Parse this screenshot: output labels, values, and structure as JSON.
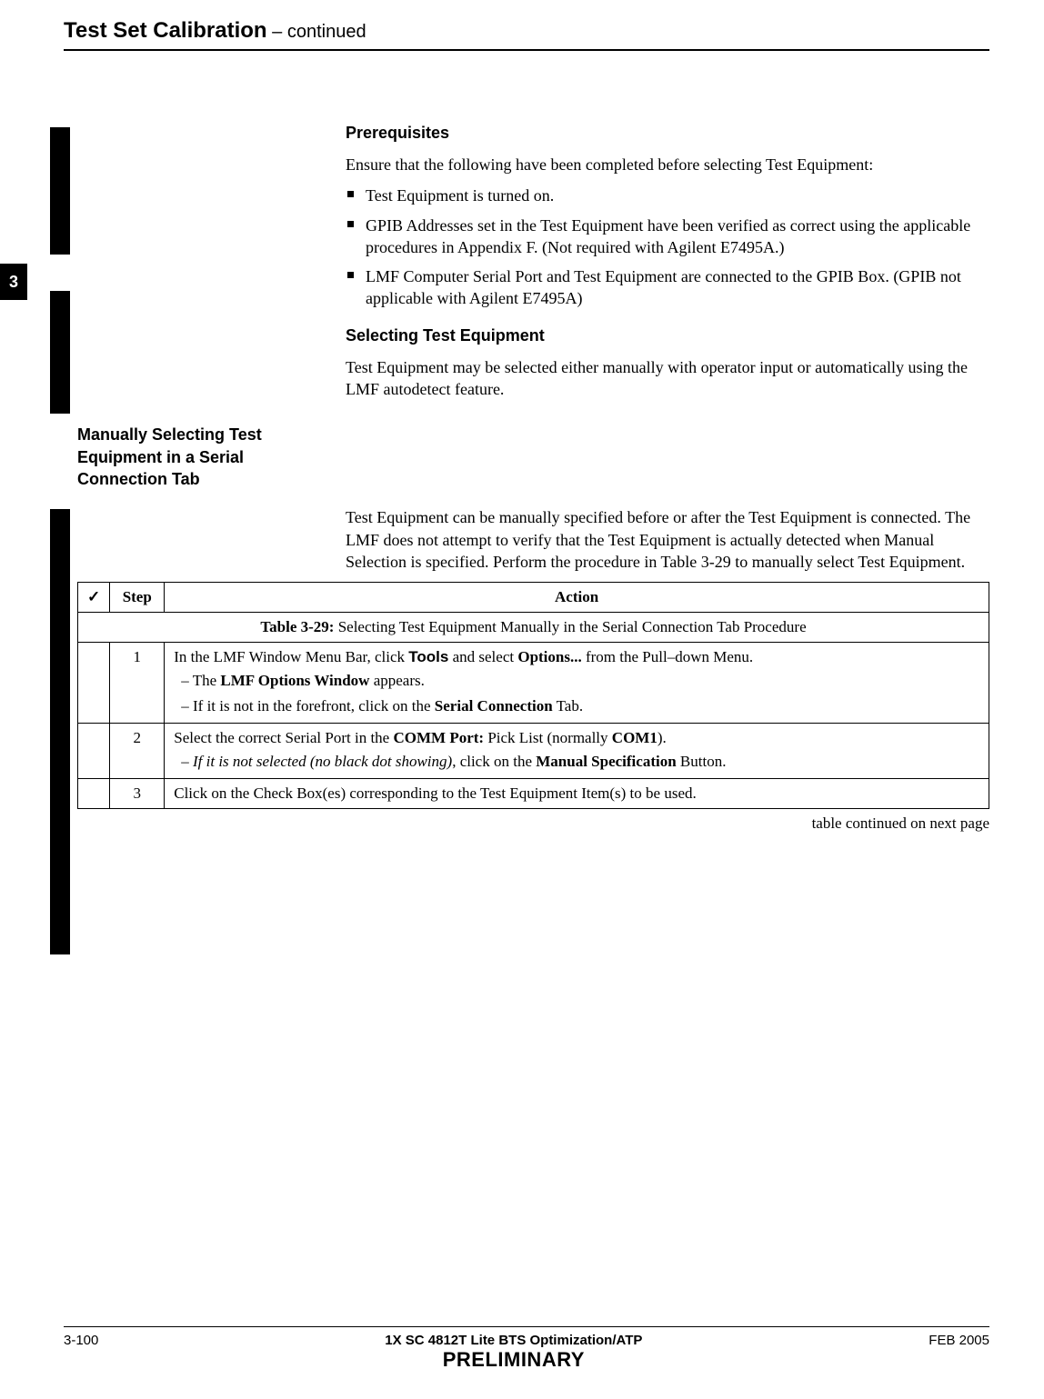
{
  "header": {
    "title": "Test Set Calibration",
    "continued": "  – continued"
  },
  "sideTab": "3",
  "sections": {
    "prereq": {
      "heading": "Prerequisites",
      "intro": "Ensure that the following have been completed before selecting Test Equipment:",
      "bullets": [
        "Test Equipment is turned on.",
        "GPIB Addresses set in the Test Equipment have been verified as correct using the applicable procedures in Appendix F. (Not required with Agilent E7495A.)",
        "LMF Computer Serial Port and Test Equipment are connected to the GPIB Box. (GPIB not applicable with Agilent E7495A)"
      ]
    },
    "selecting": {
      "heading": "Selecting Test Equipment",
      "para": "Test Equipment may be selected either manually with operator input or automatically using the LMF autodetect feature."
    },
    "manual": {
      "heading": "Manually Selecting Test Equipment in a Serial Connection Tab",
      "para": "Test Equipment can be manually specified before or after the Test Equipment is connected. The LMF does not attempt to verify that the Test Equipment is actually detected when Manual Selection is specified. Perform the procedure in Table 3-29 to manually select Test Equipment."
    }
  },
  "table": {
    "caption_prefix": "Table 3-29:",
    "caption_rest": " Selecting Test Equipment Manually in the Serial Connection Tab Procedure",
    "check_symbol": "✓",
    "col_step": "Step",
    "col_action": "Action",
    "rows": {
      "r1": {
        "step": "1",
        "a1a": "In the LMF Window Menu Bar, click ",
        "a1b": "Tools",
        "a1c": " and select ",
        "a1d": "Options...",
        "a1e": " from the Pull–down Menu.",
        "s1a": "–  The ",
        "s1b": "LMF Options Window",
        "s1c": " appears.",
        "s2a": "–  If it is not in the forefront, click on the ",
        "s2b": "Serial Connection",
        "s2c": " Tab."
      },
      "r2": {
        "step": "2",
        "a1a": "Select the correct Serial Port in the ",
        "a1b": "COMM Port:",
        "a1c": " Pick List (normally ",
        "a1d": "COM1",
        "a1e": ").",
        "s1a": "–  ",
        "s1b": "If it is not selected (no black dot showing)",
        "s1c": ", click on the ",
        "s1d": "Manual Specification",
        "s1e": " Button."
      },
      "r3": {
        "step": "3",
        "a1": "Click on the Check Box(es) corresponding to the Test Equipment Item(s) to be used."
      }
    },
    "continued_note": "table continued on next page"
  },
  "footer": {
    "page": "3-100",
    "center1": "1X SC 4812T Lite BTS Optimization/ATP",
    "center2": "PRELIMINARY",
    "date": "FEB 2005"
  }
}
